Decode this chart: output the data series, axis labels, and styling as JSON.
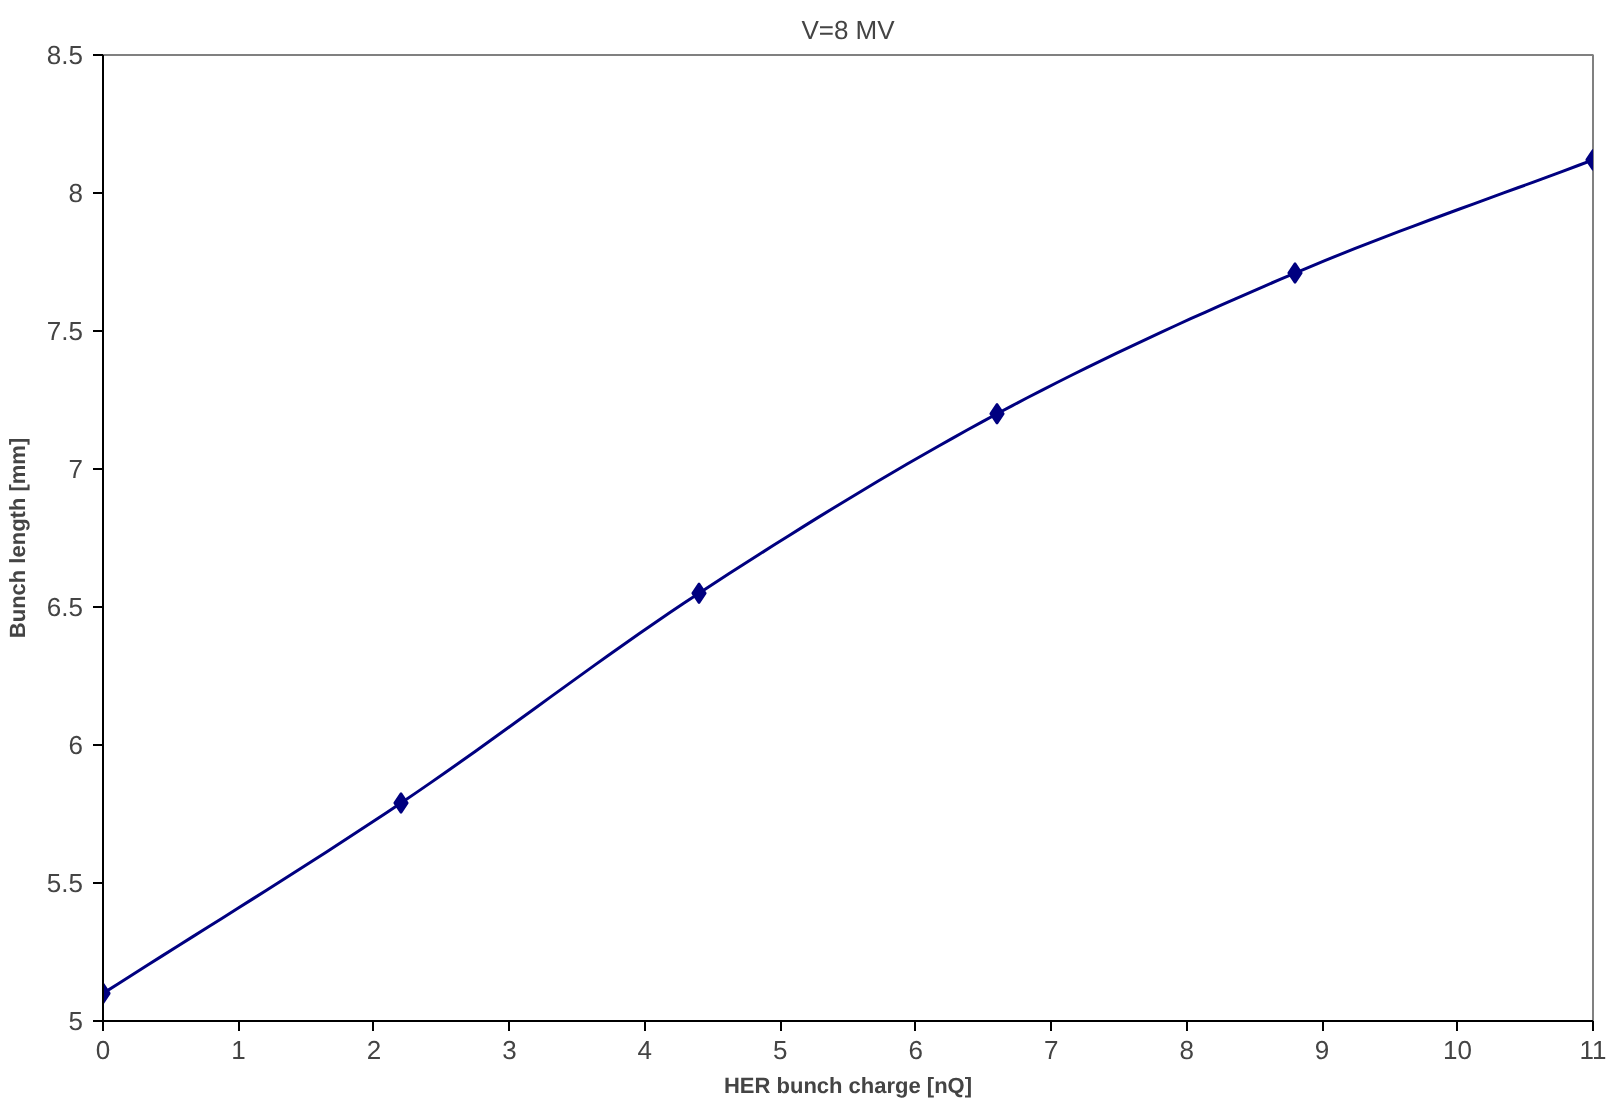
{
  "chart_data": {
    "type": "line",
    "title": "V=8 MV",
    "xlabel": "HER bunch charge [nQ]",
    "ylabel": "Bunch length [mm]",
    "x": [
      0,
      2.2,
      4.4,
      6.6,
      8.8,
      11
    ],
    "series": [
      {
        "color": "#000080",
        "values": [
          5.1,
          5.79,
          6.55,
          7.2,
          7.71,
          8.12
        ]
      }
    ],
    "xlim": [
      0,
      11
    ],
    "xticks": [
      0,
      1,
      2,
      3,
      4,
      5,
      6,
      7,
      8,
      9,
      10,
      11
    ],
    "ylim": [
      5,
      8.5
    ],
    "yticks": [
      5,
      5.5,
      6,
      6.5,
      7,
      7.5,
      8,
      8.5
    ],
    "marker": "diamond",
    "line_style": "solid",
    "grid": false
  }
}
